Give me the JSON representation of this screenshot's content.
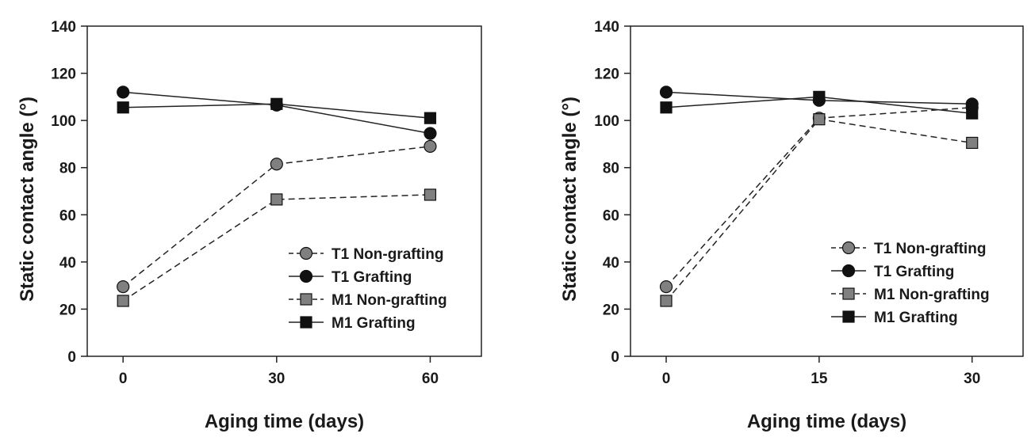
{
  "chart_data": [
    {
      "type": "line",
      "xlabel": "Aging time (days)",
      "ylabel": "Static contact angle (°)",
      "x": [
        0,
        30,
        60
      ],
      "xticks": [
        "0",
        "30",
        "60"
      ],
      "xlim": [
        -7,
        70
      ],
      "ylim": [
        0,
        140
      ],
      "yticks": [
        "0",
        "20",
        "40",
        "60",
        "80",
        "100",
        "120",
        "140"
      ],
      "grid": false,
      "legend_position": "bottom-right",
      "series": [
        {
          "name": "T1 Non-grafting",
          "marker": "circle",
          "fill": "#808080",
          "dashed": true,
          "values": [
            29.5,
            81.5,
            89
          ]
        },
        {
          "name": "T1 Grafting",
          "marker": "circle",
          "fill": "#111111",
          "dashed": false,
          "values": [
            112,
            106.5,
            94.5
          ]
        },
        {
          "name": "M1 Non-grafting",
          "marker": "square",
          "fill": "#808080",
          "dashed": true,
          "values": [
            23.5,
            66.5,
            68.5
          ]
        },
        {
          "name": "M1 Grafting",
          "marker": "square",
          "fill": "#111111",
          "dashed": false,
          "values": [
            105.5,
            107,
            101
          ]
        }
      ]
    },
    {
      "type": "line",
      "xlabel": "Aging time (days)",
      "ylabel": "Static contact angle (°)",
      "x": [
        0,
        15,
        30
      ],
      "xticks": [
        "0",
        "15",
        "30"
      ],
      "xlim": [
        -3.5,
        35
      ],
      "ylim": [
        0,
        140
      ],
      "yticks": [
        "0",
        "20",
        "40",
        "60",
        "80",
        "100",
        "120",
        "140"
      ],
      "grid": false,
      "legend_position": "bottom-right",
      "series": [
        {
          "name": "T1 Non-grafting",
          "marker": "circle",
          "fill": "#808080",
          "dashed": true,
          "values": [
            29.5,
            101,
            105.5
          ]
        },
        {
          "name": "T1 Grafting",
          "marker": "circle",
          "fill": "#111111",
          "dashed": false,
          "values": [
            112,
            108.5,
            107
          ]
        },
        {
          "name": "M1 Non-grafting",
          "marker": "square",
          "fill": "#808080",
          "dashed": true,
          "values": [
            23.5,
            100.5,
            90.5
          ]
        },
        {
          "name": "M1 Grafting",
          "marker": "square",
          "fill": "#111111",
          "dashed": false,
          "values": [
            105.5,
            110,
            103
          ]
        }
      ]
    }
  ]
}
